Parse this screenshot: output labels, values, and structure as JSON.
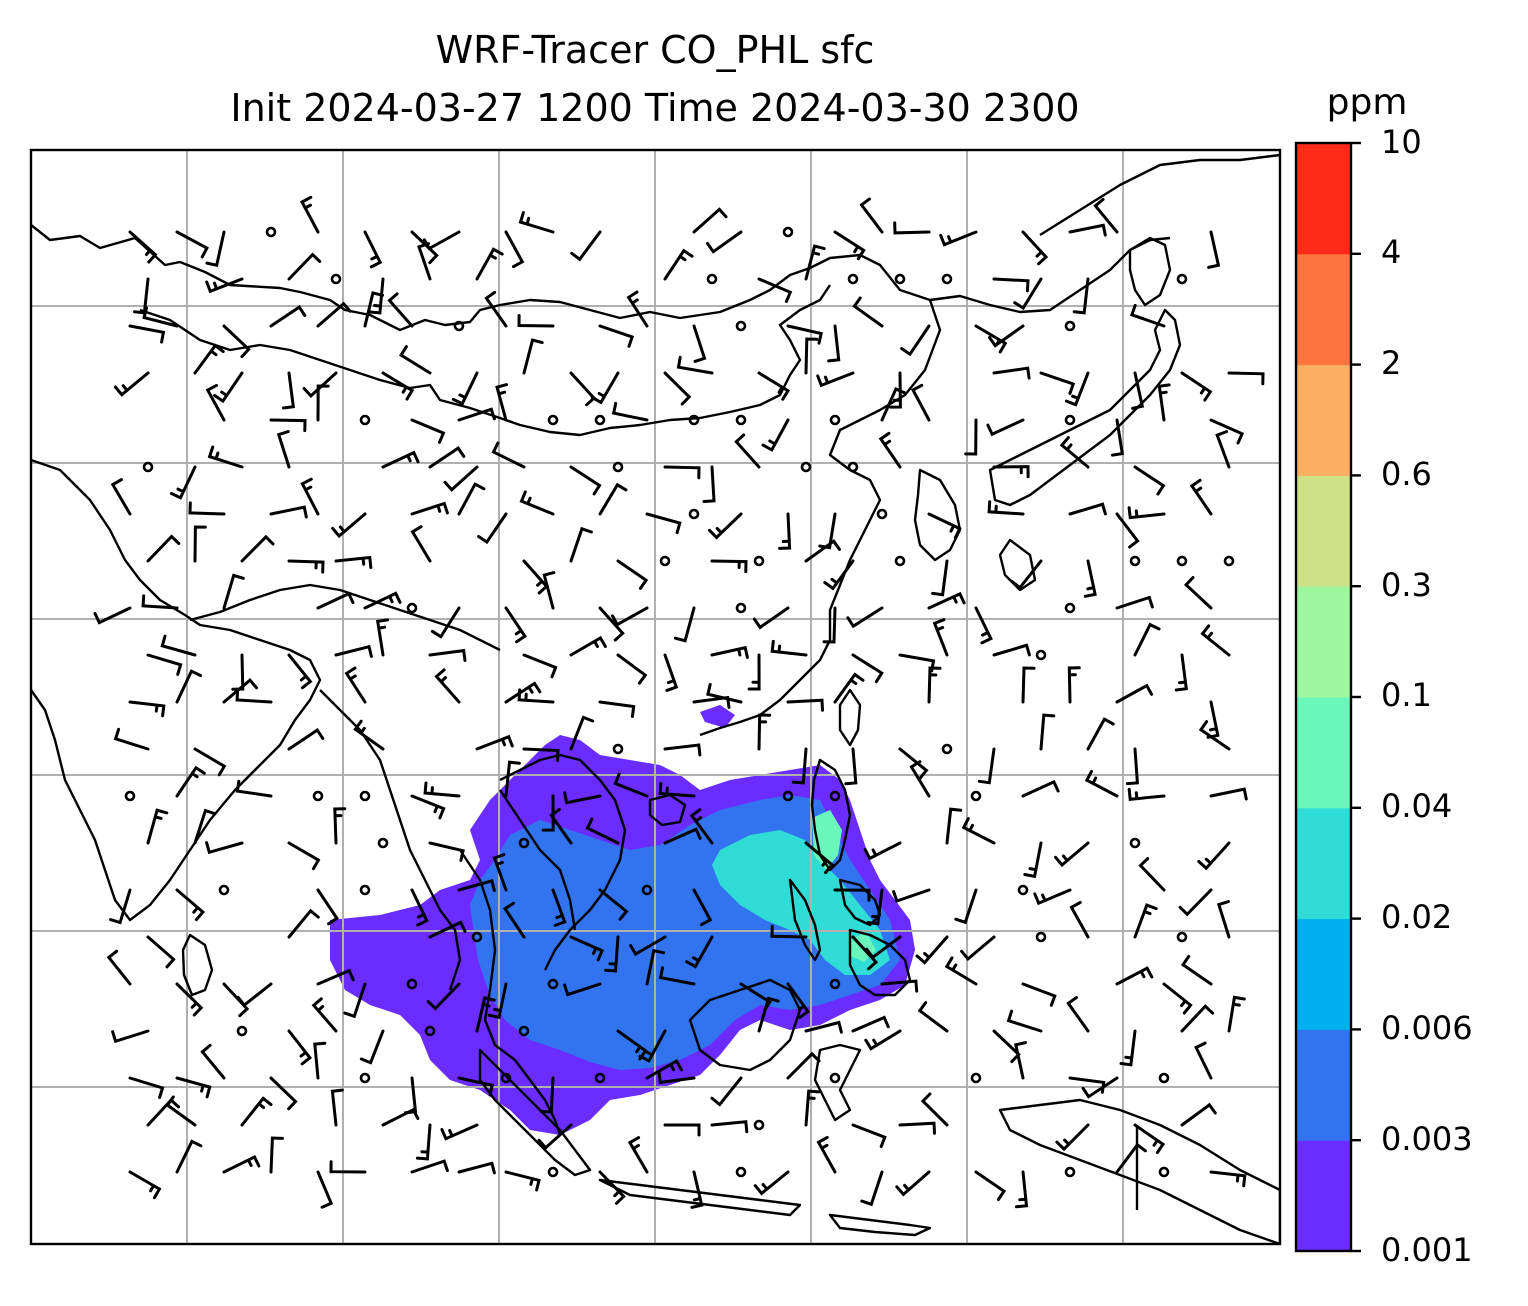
{
  "title": {
    "line1": "WRF-Tracer CO_PHL sfc",
    "line2": "Init 2024-03-27 1200 Time 2024-03-30 2300"
  },
  "colorbar": {
    "unit": "ppm",
    "ticks": [
      "0.001",
      "0.003",
      "0.006",
      "0.02",
      "0.04",
      "0.1",
      "0.3",
      "0.6",
      "2",
      "4",
      "10"
    ],
    "colors": [
      "#6a2cff",
      "#3274f0",
      "#00b0ee",
      "#30dcd6",
      "#69f7bb",
      "#9cf79f",
      "#cee186",
      "#fdb064",
      "#ff743f",
      "#ff2a17"
    ]
  },
  "map": {
    "region": "East and Southeast Asia",
    "grid": true,
    "features": [
      "coastlines",
      "country borders",
      "wind barbs",
      "calm wind circles",
      "tracer concentration contours"
    ],
    "plume_colors": {
      "low": "#6a2cff",
      "mid": "#3274f0",
      "high": "#30dcd6",
      "peak": "#69f7bb"
    },
    "line_color": "#000000",
    "grid_color": "#b0b0b0"
  }
}
